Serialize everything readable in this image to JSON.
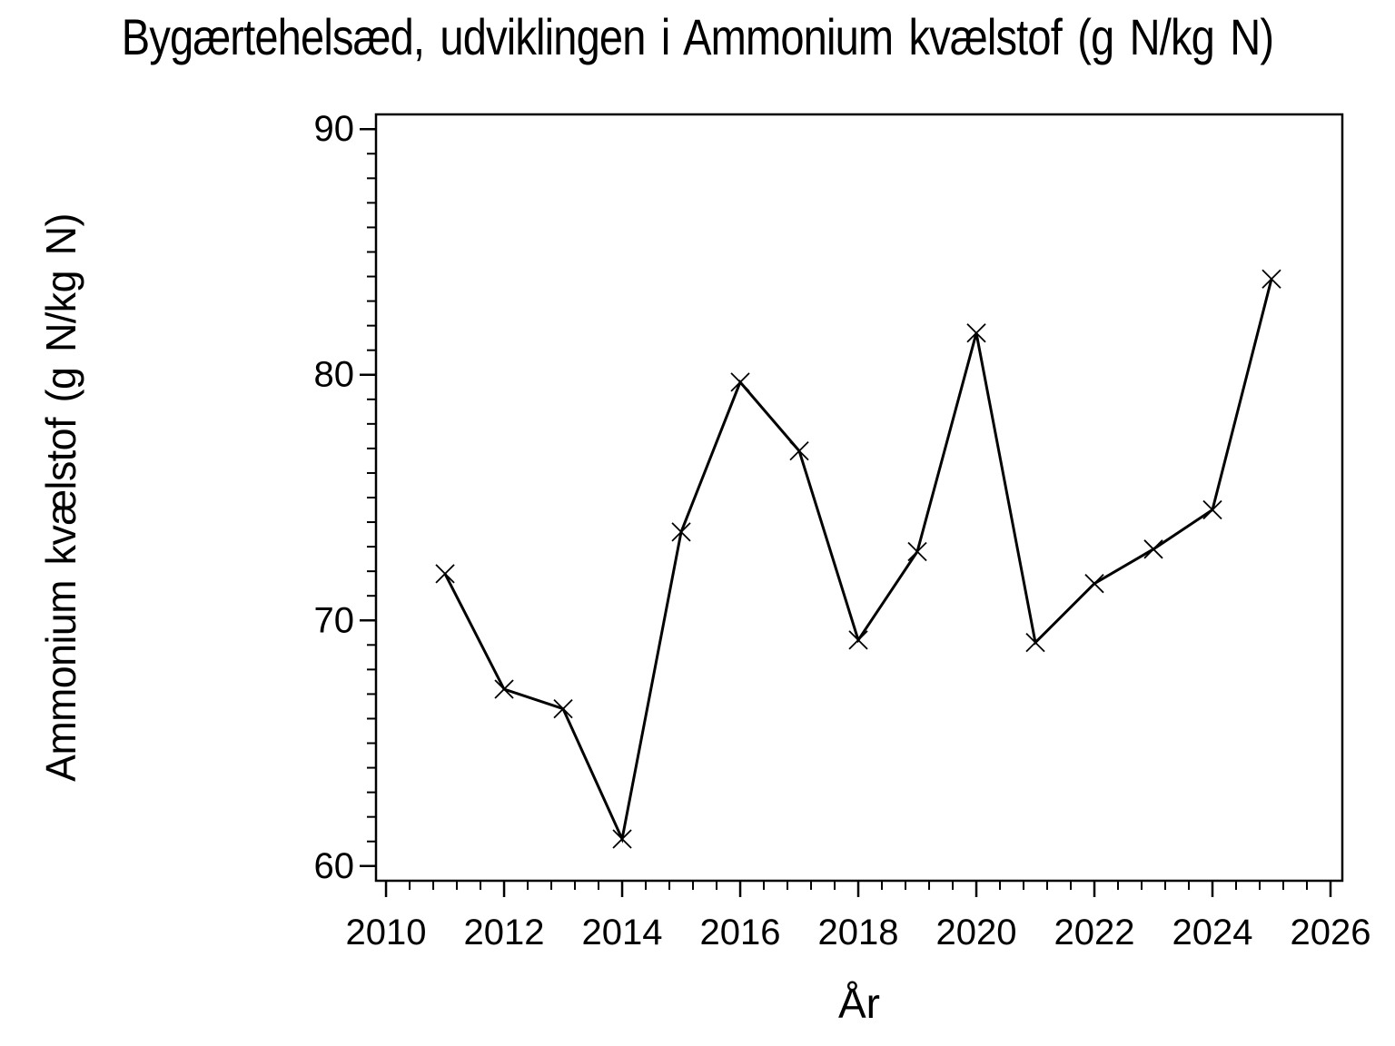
{
  "page": {
    "background_color": "#ffffff",
    "ink_color": "#000000"
  },
  "chart_data": {
    "type": "line",
    "title": "Bygærtehelsæd, udviklingen i Ammonium kvælstof (g N/kg N)",
    "xlabel": "År",
    "ylabel": "Ammonium kvælstof (g N/kg N)",
    "x": [
      2011,
      2012,
      2013,
      2014,
      2015,
      2016,
      2017,
      2018,
      2019,
      2020,
      2021,
      2022,
      2023,
      2024,
      2025
    ],
    "series": [
      {
        "name": "Ammonium kvælstof (g N/kg N)",
        "values": [
          71.9,
          67.2,
          66.4,
          61.1,
          73.6,
          79.7,
          76.9,
          69.2,
          72.8,
          81.7,
          69.1,
          71.5,
          72.9,
          74.5,
          83.9
        ]
      }
    ],
    "marker": "x",
    "line_color": "#000000",
    "grid": false,
    "legend_position": "none",
    "xlim": [
      2009.83,
      2026.2
    ],
    "ylim": [
      59.4,
      90.6
    ],
    "x_ticks_major": [
      2010,
      2012,
      2014,
      2016,
      2018,
      2020,
      2022,
      2024,
      2026
    ],
    "x_tick_labels": [
      "2010",
      "2012",
      "2014",
      "2016",
      "2018",
      "2020",
      "2022",
      "2024",
      "2026"
    ],
    "x_tick_minor_step": 0.4,
    "y_ticks_major": [
      60,
      70,
      80,
      90
    ],
    "y_tick_labels": [
      "60",
      "70",
      "80",
      "90"
    ],
    "y_tick_minor_step": 1
  }
}
